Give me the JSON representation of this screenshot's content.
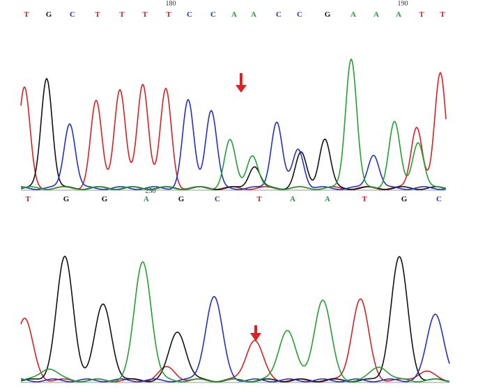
{
  "top": {
    "bases": [
      "T",
      "G",
      "C",
      "T",
      "T",
      "T",
      "T",
      "C",
      "C",
      "A",
      "A",
      "C",
      "C",
      "G",
      "A",
      "A",
      "A",
      "T",
      "T"
    ],
    "positions": [
      "180",
      "190"
    ]
  },
  "bottom": {
    "bases": [
      "T",
      "G",
      "G",
      "A",
      "G",
      "C",
      "T",
      "A",
      "A",
      "T",
      "G",
      "C"
    ],
    "positions": [
      "250"
    ]
  }
}
